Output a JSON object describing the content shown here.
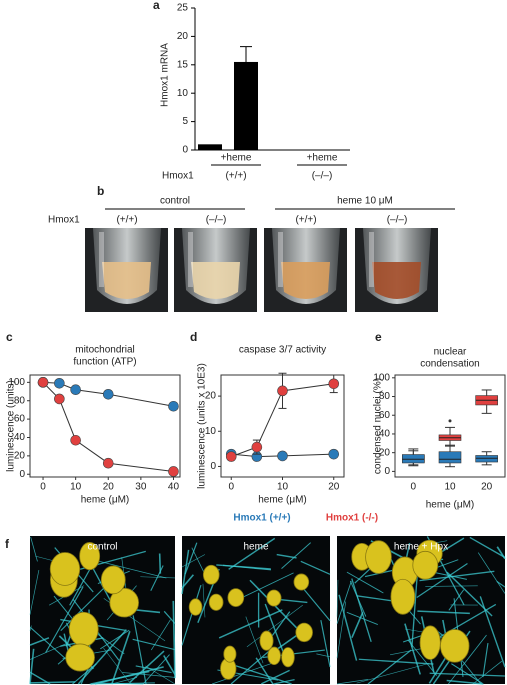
{
  "chart_data": [
    {
      "type": "bar",
      "panel_label": "a",
      "ylabel": "Hmox1 mRNA",
      "values": [
        1,
        15.5,
        null,
        null
      ],
      "errors": [
        null,
        2.7,
        null,
        null
      ],
      "color": "#000000",
      "ylim": [
        0,
        25
      ],
      "yticks": [
        0,
        5,
        10,
        15,
        20,
        25
      ],
      "groups": [
        {
          "treatment": "+heme",
          "genotype": "(+/+)"
        },
        {
          "treatment": "+heme",
          "genotype": "(–/–)"
        }
      ],
      "row_label": "Hmox1"
    },
    {
      "type": "line",
      "panel_label": "c",
      "title_lines": [
        "mitochondrial",
        "function (ATP)"
      ],
      "xlabel": "heme (μM)",
      "ylabel": "luminescence (units)",
      "x": [
        0,
        5,
        10,
        20,
        40
      ],
      "series": [
        {
          "color": "#2a7ab8",
          "values": [
            100,
            99,
            92,
            87,
            74
          ]
        },
        {
          "color": "#e0403f",
          "values": [
            100,
            82,
            37,
            12,
            3
          ]
        }
      ],
      "xlim": [
        -4,
        42
      ],
      "ylim": [
        -3,
        108
      ],
      "xticks": [
        0,
        10,
        20,
        30,
        40
      ],
      "yticks": [
        0,
        20,
        40,
        60,
        80,
        100
      ]
    },
    {
      "type": "line",
      "panel_label": "d",
      "title_lines": [
        "caspase 3/7 activity"
      ],
      "xlabel": "heme (μM)",
      "ylabel": "luminescence (units x 10E3)",
      "x": [
        0,
        5,
        10,
        20
      ],
      "series": [
        {
          "name": "Hmox1 (+/+)",
          "color": "#2a7ab8",
          "values": [
            3.5,
            2.8,
            3.0,
            3.5
          ]
        },
        {
          "name": "Hmox1 (-/-)",
          "color": "#e0403f",
          "values": [
            2.8,
            5.5,
            21.5,
            23.5
          ],
          "errors": [
            0.5,
            2,
            5,
            2.5
          ]
        }
      ],
      "xlim": [
        -2,
        22
      ],
      "ylim": [
        -3,
        26
      ],
      "xticks": [
        0,
        10,
        20
      ],
      "yticks": [
        0,
        10,
        20
      ]
    },
    {
      "type": "box",
      "panel_label": "e",
      "title_lines": [
        "nuclear",
        "condensation"
      ],
      "xlabel": "heme (μM)",
      "ylabel": "condensed nuclei (%)",
      "categories": [
        "0",
        "10",
        "20"
      ],
      "series": [
        {
          "color": "#e0403f",
          "min": [
            6,
            27,
            62
          ],
          "q1": [
            10,
            33,
            71
          ],
          "median": [
            14,
            36,
            76
          ],
          "q3": [
            17,
            39,
            81
          ],
          "max": [
            22,
            47,
            87
          ],
          "outliers": [
            [],
            [
              54
            ],
            []
          ]
        },
        {
          "color": "#2a7ab8",
          "min": [
            7,
            5,
            7
          ],
          "q1": [
            9,
            9,
            10
          ],
          "median": [
            13,
            13,
            14
          ],
          "q3": [
            18,
            21,
            17
          ],
          "max": [
            24,
            28,
            21
          ],
          "outliers": [
            [],
            [],
            []
          ]
        }
      ],
      "ylim": [
        -6,
        103
      ],
      "yticks": [
        0,
        20,
        40,
        60,
        80,
        100
      ]
    }
  ],
  "photo_panel": {
    "label": "b",
    "groups": [
      "control",
      "heme 10 μM"
    ],
    "row_label": "Hmox1",
    "genotypes": [
      "(+/+)",
      "(–/–)",
      "(+/+)",
      "(–/–)"
    ]
  },
  "micrograph_panel": {
    "label": "f",
    "labels": [
      "control",
      "heme",
      "heme + Hpx"
    ]
  }
}
